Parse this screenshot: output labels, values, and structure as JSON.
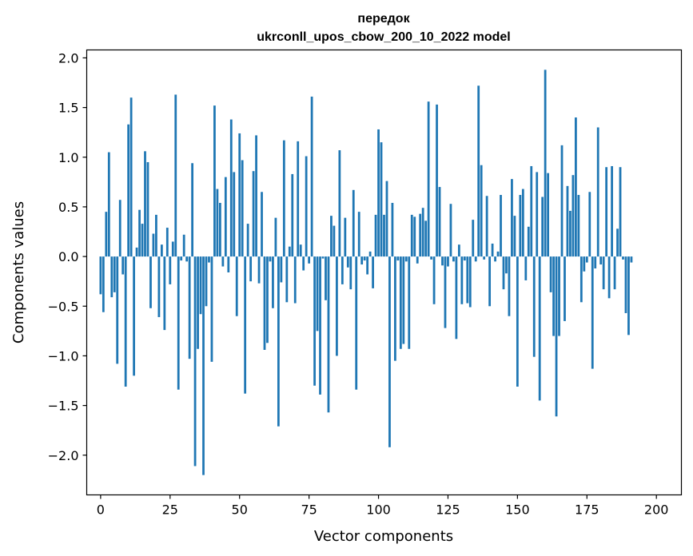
{
  "chart_data": {
    "type": "bar",
    "title_line1": "передок",
    "title_line2": "ukrconll_upos_cbow_200_10_2022 model",
    "xlabel": "Vector components",
    "ylabel": "Components values",
    "xlim": [
      -5,
      209
    ],
    "ylim": [
      -2.4,
      2.08
    ],
    "xticks": [
      0,
      25,
      50,
      75,
      100,
      125,
      150,
      175,
      200
    ],
    "xtick_labels": [
      "0",
      "25",
      "50",
      "75",
      "100",
      "125",
      "150",
      "175",
      "200"
    ],
    "yticks": [
      2.0,
      1.5,
      1.0,
      0.5,
      0.0,
      -0.5,
      -1.0,
      -1.5,
      -2.0
    ],
    "ytick_labels": [
      "2.0",
      "1.5",
      "1.0",
      "0.5",
      "0.0",
      "−0.5",
      "−1.0",
      "−1.5",
      "−2.0"
    ],
    "bar_color": "#1f77b4",
    "values": [
      -0.38,
      -0.56,
      0.45,
      1.05,
      -0.41,
      -0.36,
      -1.08,
      0.57,
      -0.18,
      -1.31,
      1.33,
      1.6,
      -1.2,
      0.09,
      0.47,
      0.33,
      1.06,
      0.95,
      -0.52,
      0.23,
      0.42,
      -0.61,
      0.12,
      -0.74,
      0.29,
      -0.28,
      0.15,
      1.63,
      -1.34,
      -0.04,
      0.22,
      -0.05,
      -1.03,
      0.94,
      -2.11,
      -0.93,
      -0.58,
      -2.2,
      -0.5,
      -0.06,
      -1.06,
      1.52,
      0.68,
      0.54,
      -0.1,
      0.8,
      -0.16,
      1.38,
      0.85,
      -0.6,
      1.24,
      0.97,
      -1.38,
      0.33,
      -0.25,
      0.86,
      1.22,
      -0.27,
      0.65,
      -0.94,
      -0.87,
      -0.05,
      -0.52,
      0.39,
      -1.71,
      -0.26,
      1.17,
      -0.46,
      0.1,
      0.83,
      -0.47,
      1.16,
      0.12,
      -0.14,
      1.01,
      -0.07,
      1.61,
      -1.3,
      -0.75,
      -1.39,
      -0.02,
      -0.44,
      -1.57,
      0.41,
      0.31,
      -1.0,
      1.07,
      -0.28,
      0.39,
      -0.11,
      -0.33,
      0.67,
      -1.34,
      0.45,
      -0.08,
      -0.04,
      -0.18,
      0.05,
      -0.32,
      0.42,
      1.28,
      1.15,
      0.42,
      0.76,
      -1.92,
      0.54,
      -1.05,
      -0.04,
      -0.93,
      -0.88,
      -0.05,
      -0.93,
      0.42,
      0.4,
      -0.07,
      0.43,
      0.49,
      0.36,
      1.56,
      -0.03,
      -0.48,
      1.53,
      0.7,
      -0.09,
      -0.72,
      -0.1,
      0.53,
      -0.05,
      -0.83,
      0.12,
      -0.48,
      -0.04,
      -0.47,
      -0.51,
      0.37,
      -0.05,
      1.72,
      0.92,
      -0.03,
      0.61,
      -0.5,
      0.13,
      -0.05,
      0.05,
      0.62,
      -0.33,
      -0.17,
      -0.6,
      0.78,
      0.41,
      -1.31,
      0.62,
      0.68,
      -0.24,
      0.3,
      0.91,
      -1.01,
      0.85,
      -1.45,
      0.6,
      1.88,
      0.84,
      -0.36,
      -0.8,
      -1.61,
      -0.8,
      1.12,
      -0.65,
      0.71,
      0.46,
      0.82,
      1.4,
      0.62,
      -0.46,
      -0.15,
      -0.06,
      0.65,
      -1.13,
      -0.12,
      1.3,
      -0.08,
      -0.33,
      0.9,
      -0.42,
      0.91,
      -0.33,
      0.28,
      0.9,
      -0.03,
      -0.57,
      -0.79,
      -0.06
    ]
  }
}
